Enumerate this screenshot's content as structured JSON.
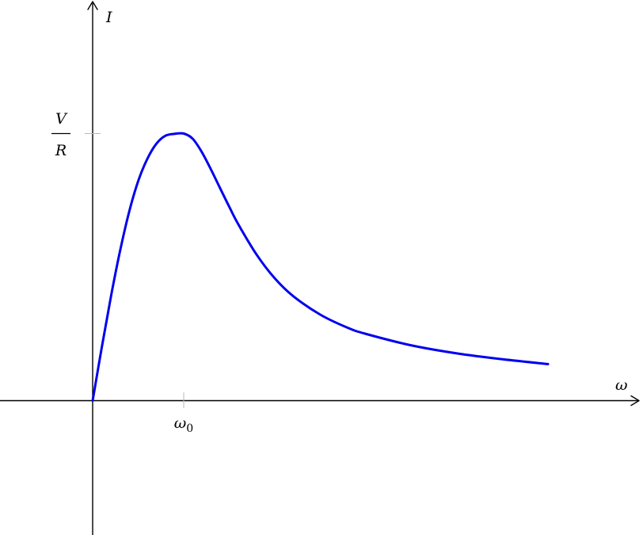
{
  "chart_data": {
    "type": "line",
    "xlabel": "ω",
    "ylabel": "I",
    "x_tick_label": "ω0",
    "y_tick_label": {
      "numerator": "V",
      "denominator": "R"
    },
    "xlim": [
      -1,
      5
    ],
    "ylim": [
      -0.5,
      1.5
    ],
    "curve_color": "#0000ee",
    "series": [
      {
        "x": [
          0,
          0.1,
          0.2,
          0.3,
          0.4,
          0.5,
          0.6,
          0.7,
          0.8,
          0.9,
          1.0,
          1.1,
          1.2,
          1.3,
          1.4,
          1.5,
          1.6,
          1.8,
          2.0,
          2.2,
          2.5,
          2.8,
          3.0,
          3.5,
          4.0,
          4.5,
          5.0
        ],
        "y": [
          0,
          0.199,
          0.388,
          0.559,
          0.706,
          0.822,
          0.905,
          0.962,
          0.992,
          0.999,
          1.0,
          0.98,
          0.93,
          0.865,
          0.795,
          0.726,
          0.66,
          0.547,
          0.458,
          0.392,
          0.322,
          0.273,
          0.25,
          0.207,
          0.177,
          0.155,
          0.137
        ]
      }
    ]
  }
}
